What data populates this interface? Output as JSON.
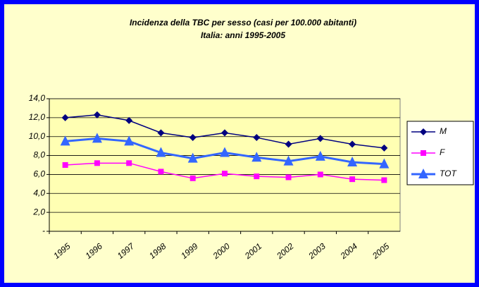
{
  "chart_data": {
    "type": "line",
    "title": "Incidenza della TBC per sesso (casi per 100.000 abitanti)",
    "subtitle": "Italia: anni 1995-2005",
    "categories": [
      "1995",
      "1996",
      "1997",
      "1998",
      "1999",
      "2000",
      "2001",
      "2002",
      "2003",
      "2004",
      "2005"
    ],
    "series": [
      {
        "name": "M",
        "color": "#000080",
        "marker": "diamond",
        "values": [
          12.0,
          12.3,
          11.7,
          10.4,
          9.9,
          10.4,
          9.9,
          9.2,
          9.8,
          9.2,
          8.8
        ]
      },
      {
        "name": "F",
        "color": "#ff00ff",
        "marker": "square",
        "values": [
          7.0,
          7.2,
          7.2,
          6.3,
          5.6,
          6.1,
          5.8,
          5.7,
          6.0,
          5.5,
          5.4
        ]
      },
      {
        "name": "TOT",
        "color": "#3366ff",
        "marker": "triangle",
        "values": [
          9.5,
          9.8,
          9.5,
          8.3,
          7.7,
          8.3,
          7.8,
          7.4,
          7.9,
          7.3,
          7.1
        ]
      }
    ],
    "ylim": [
      0,
      14
    ],
    "yticks": [
      {
        "value": 0,
        "label": "-"
      },
      {
        "value": 2,
        "label": "2,0"
      },
      {
        "value": 4,
        "label": "4,0"
      },
      {
        "value": 6,
        "label": "6,0"
      },
      {
        "value": 8,
        "label": "8,0"
      },
      {
        "value": 10,
        "label": "10,0"
      },
      {
        "value": 12,
        "label": "12,0"
      },
      {
        "value": 14,
        "label": "14,0"
      }
    ],
    "grid": true,
    "legend": "right"
  }
}
